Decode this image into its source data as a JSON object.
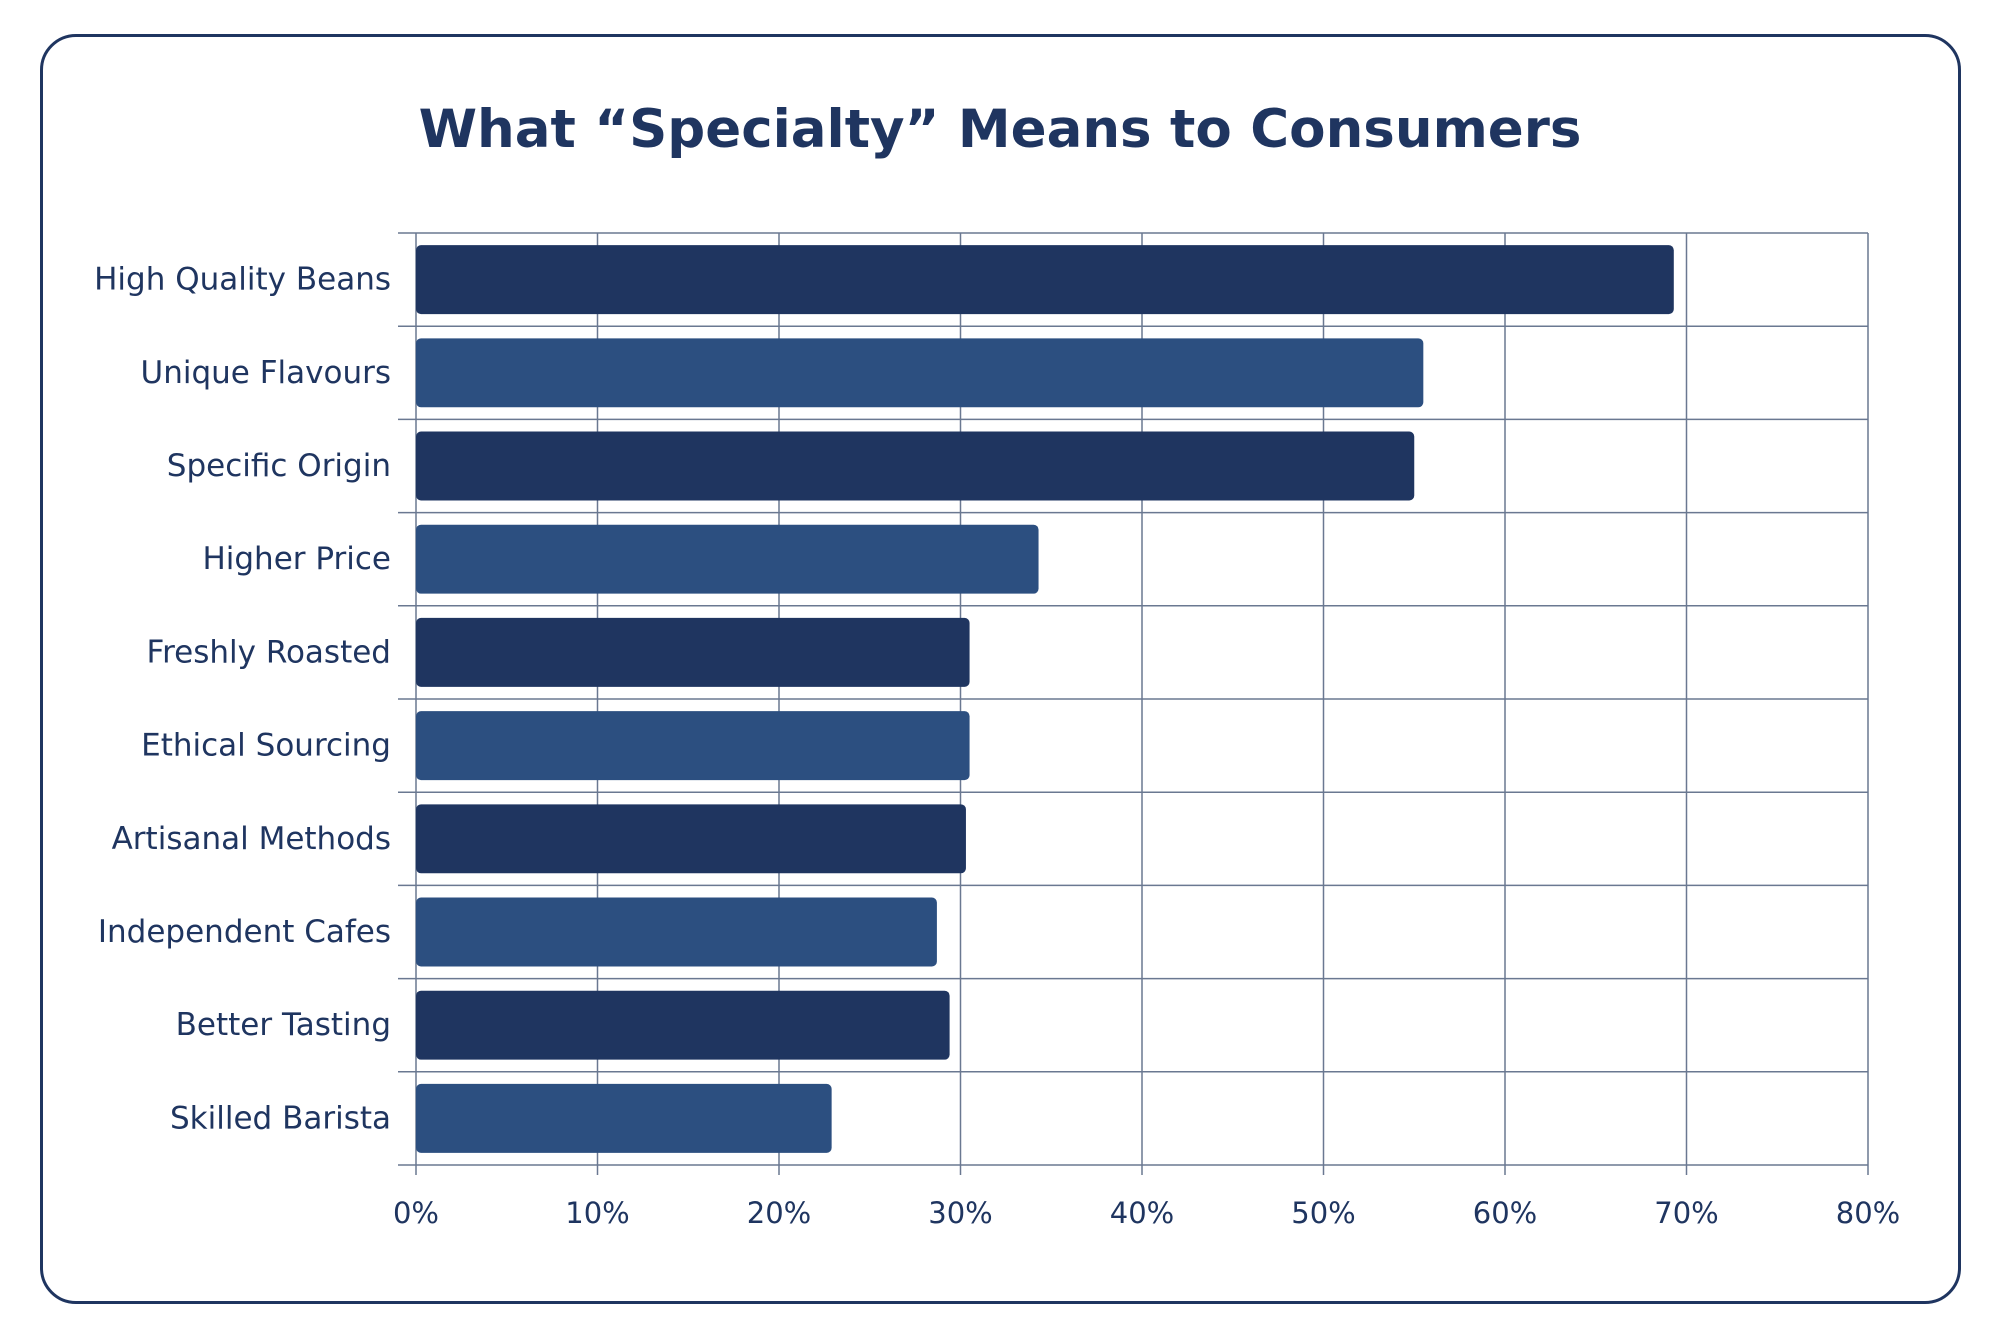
{
  "chart_data": {
    "type": "bar",
    "orientation": "horizontal",
    "title": "What “Specialty” Means to Consumers",
    "categories": [
      "High Quality Beans",
      "Unique Flavours",
      "Specific Origin",
      "Higher Price",
      "Freshly Roasted",
      "Ethical Sourcing",
      "Artisanal Methods",
      "Independent Cafes",
      "Better Tasting",
      "Skilled Barista"
    ],
    "values": [
      69.3,
      55.5,
      55.0,
      34.3,
      30.5,
      30.5,
      30.3,
      28.7,
      29.4,
      22.9
    ],
    "xlim": [
      0,
      80
    ],
    "x_ticks": [
      "0%",
      "10%",
      "20%",
      "30%",
      "40%",
      "50%",
      "60%",
      "70%",
      "80%"
    ],
    "xlabel": "",
    "ylabel": "",
    "grid": true,
    "legend": "none",
    "colors": {
      "bar_dark": "#1f3560",
      "bar_light": "#2c4f80",
      "grid": "#6a7891",
      "text": "#1f3560",
      "border": "#1f3560"
    }
  }
}
